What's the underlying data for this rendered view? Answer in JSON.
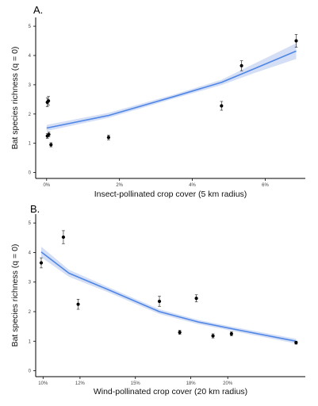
{
  "chart_data": [
    {
      "type": "line",
      "panel_label": "A.",
      "xlabel": "Insect-pollinated crop cover (5 km radius)",
      "ylabel": "Bat species richness (q = 0)",
      "xlim": [
        -0.3,
        7.1
      ],
      "ylim": [
        -0.2,
        5.3
      ],
      "x_ticks": [
        0,
        2,
        4,
        6
      ],
      "x_tick_labels": [
        "0%",
        "2%",
        "4%",
        "6%"
      ],
      "y_ticks": [
        0,
        1,
        2,
        3,
        4,
        5
      ],
      "y_tick_labels": [
        "0",
        "1",
        "2",
        "3",
        "4",
        "5"
      ],
      "grid": false,
      "series": [
        {
          "kind": "fit",
          "x": [
            0,
            1.7,
            3.5,
            4.8,
            5.7,
            6.85
          ],
          "y": [
            1.52,
            1.95,
            2.6,
            3.08,
            3.55,
            4.15
          ],
          "ci_lower": [
            1.42,
            1.87,
            2.53,
            2.99,
            3.4,
            3.88
          ],
          "ci_upper": [
            1.63,
            2.04,
            2.67,
            3.17,
            3.72,
            4.42
          ]
        },
        {
          "kind": "points",
          "x": [
            0.02,
            0.05,
            0.02,
            0.06,
            0.12,
            1.7,
            4.8,
            5.35,
            6.85
          ],
          "y": [
            2.4,
            2.45,
            1.25,
            1.3,
            0.95,
            1.2,
            2.28,
            3.65,
            4.5
          ],
          "err": [
            0.15,
            0.15,
            0.08,
            0.08,
            0.07,
            0.08,
            0.15,
            0.17,
            0.22
          ]
        }
      ]
    },
    {
      "type": "line",
      "panel_label": "B.",
      "xlabel": "Wind-pollinated crop cover (20 km radius)",
      "ylabel": "Bat species richness (q = 0)",
      "xlim": [
        9.6,
        24.2
      ],
      "ylim": [
        -0.2,
        5.3
      ],
      "x_ticks": [
        10,
        12,
        15,
        18,
        20
      ],
      "x_tick_labels": [
        "10%",
        "12%",
        "15%",
        "18%",
        "20%"
      ],
      "y_ticks": [
        0,
        1,
        2,
        3,
        4,
        5
      ],
      "y_tick_labels": [
        "0",
        "1",
        "2",
        "3",
        "4",
        "5"
      ],
      "grid": false,
      "series": [
        {
          "kind": "fit",
          "x": [
            9.9,
            11.4,
            13.5,
            16.3,
            18.4,
            20.4,
            23.7
          ],
          "y": [
            4.02,
            3.3,
            2.75,
            2.0,
            1.65,
            1.4,
            1.0
          ],
          "ci_lower": [
            3.84,
            3.18,
            2.66,
            1.92,
            1.58,
            1.33,
            0.92
          ],
          "ci_upper": [
            4.2,
            3.42,
            2.84,
            2.08,
            1.72,
            1.47,
            1.08
          ]
        },
        {
          "kind": "points",
          "x": [
            9.9,
            11.1,
            11.9,
            16.3,
            17.4,
            18.3,
            19.2,
            20.2,
            23.7
          ],
          "y": [
            3.65,
            4.52,
            2.25,
            2.35,
            1.3,
            2.45,
            1.18,
            1.25,
            0.95
          ],
          "err": [
            0.17,
            0.22,
            0.17,
            0.17,
            0.07,
            0.12,
            0.07,
            0.07,
            0.05
          ]
        }
      ]
    }
  ],
  "colors": {
    "line": "#4f86e6",
    "band": "#cfdcf4",
    "points": "#000000",
    "axis": "#000000"
  }
}
